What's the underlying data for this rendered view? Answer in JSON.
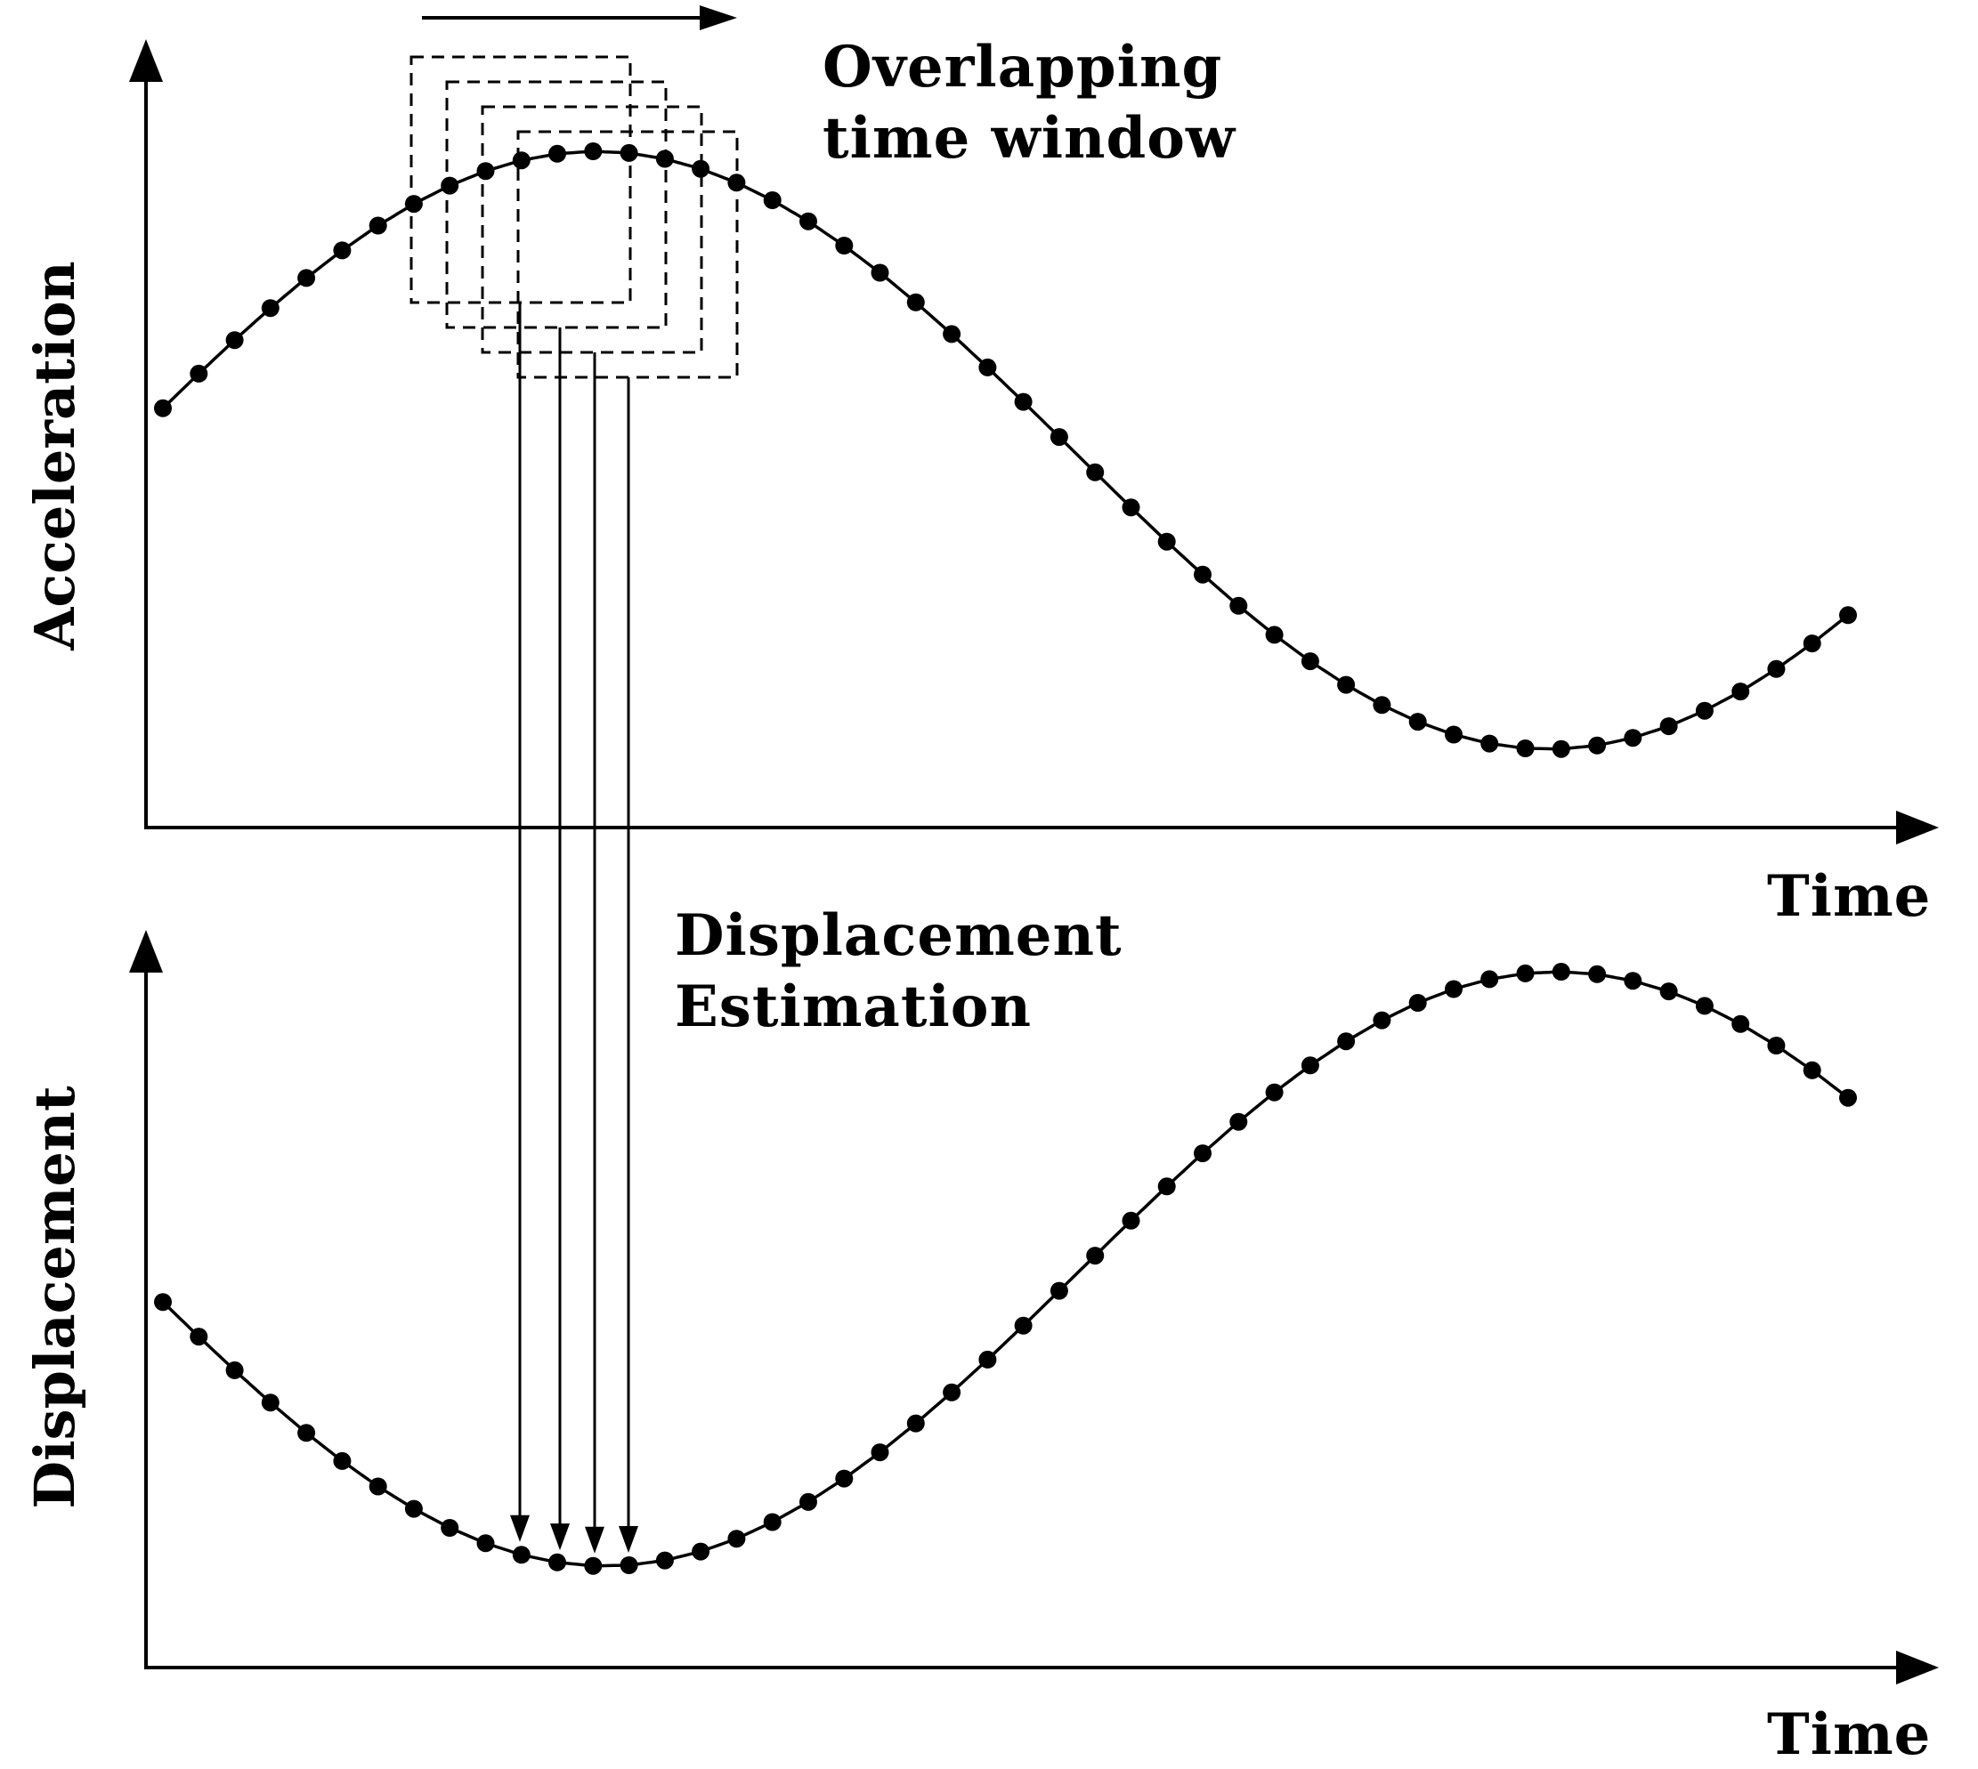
{
  "labels": {
    "overlap_line1": "Overlapping",
    "overlap_line2": "time window",
    "displacement_line1": "Displacement",
    "displacement_line2": "Estimation",
    "top_y_axis": "Acceleration",
    "top_x_axis": "Time",
    "bottom_y_axis": "Displacement",
    "bottom_x_axis": "Time"
  },
  "diagram": {
    "samples_per_curve": 48,
    "window_count": 4,
    "stroke_color": "#000000",
    "background_color": "#ffffff"
  }
}
